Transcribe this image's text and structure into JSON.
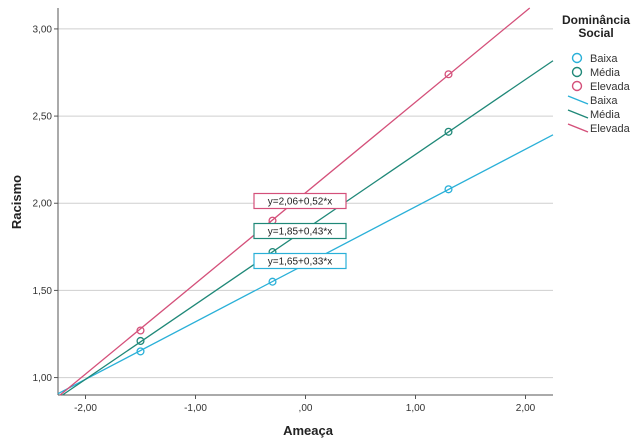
{
  "chart_data": {
    "type": "scatter",
    "title": "",
    "xlabel": "Ameaça",
    "ylabel": "Racismo",
    "xlim": [
      -2.25,
      2.25
    ],
    "ylim": [
      0.9,
      3.12
    ],
    "x_ticks": [
      -2.0,
      -1.0,
      0.0,
      1.0,
      2.0
    ],
    "x_tick_labels": [
      "-2,00",
      "-1,00",
      ",00",
      "1,00",
      "2,00"
    ],
    "y_ticks": [
      1.0,
      1.5,
      2.0,
      2.5,
      3.0
    ],
    "y_tick_labels": [
      "1,00",
      "1,50",
      "2,00",
      "2,50",
      "3,00"
    ],
    "grid": "horizontal",
    "legend": {
      "title": "Dominância Social",
      "title_lines": [
        "Dominância",
        "Social"
      ],
      "position": "right",
      "marker_labels": [
        "Baixa",
        "Média",
        "Elevada"
      ],
      "line_labels": [
        "Baixa",
        "Média",
        "Elevada"
      ]
    },
    "series": [
      {
        "name": "Baixa",
        "color": "#2ab0d8",
        "points": [
          {
            "x": -1.5,
            "y": 1.15
          },
          {
            "x": -0.3,
            "y": 1.55
          },
          {
            "x": 1.3,
            "y": 2.08
          }
        ],
        "fit": {
          "intercept": 1.65,
          "slope": 0.33
        },
        "equation": "y=1,65+0,33*x"
      },
      {
        "name": "Média",
        "color": "#1f8878",
        "points": [
          {
            "x": -1.5,
            "y": 1.21
          },
          {
            "x": -0.3,
            "y": 1.72
          },
          {
            "x": 1.3,
            "y": 2.41
          }
        ],
        "fit": {
          "intercept": 1.85,
          "slope": 0.43
        },
        "equation": "y=1,85+0,43*x"
      },
      {
        "name": "Elevada",
        "color": "#d4507a",
        "points": [
          {
            "x": -1.5,
            "y": 1.27
          },
          {
            "x": -0.3,
            "y": 1.9
          },
          {
            "x": 1.3,
            "y": 2.74
          }
        ],
        "fit": {
          "intercept": 2.06,
          "slope": 0.52
        },
        "equation": "y=2,06+0,52*x"
      }
    ]
  }
}
